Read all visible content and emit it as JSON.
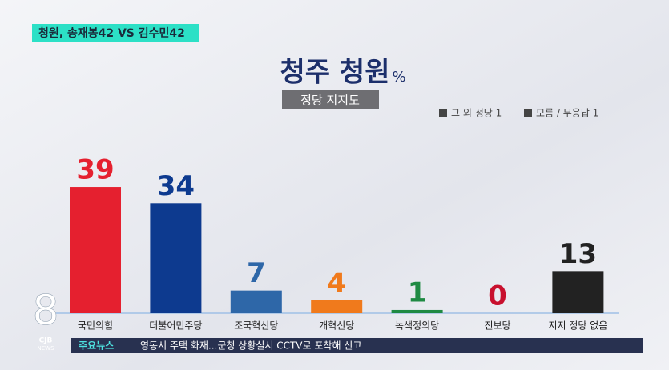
{
  "header": {
    "tag": "청원, 송재봉42 VS 김수민42"
  },
  "logo": {
    "mark": "8",
    "brand": "CJB",
    "sub": "NEWS"
  },
  "ticker": {
    "label": "주요뉴스",
    "text": "영동서 주택 화재...군청 상황실서 CCTV로 포착해 신고"
  },
  "chart_data": {
    "type": "bar",
    "title": "청주 청원",
    "title_unit": "%",
    "subtitle": "정당 지지도",
    "notes": [
      "그 외 정당 1",
      "모름 / 무응답 1"
    ],
    "categories": [
      "국민의힘",
      "더불어민주당",
      "조국혁신당",
      "개혁신당",
      "녹색정의당",
      "진보당",
      "지지 정당 없음"
    ],
    "values": [
      39,
      34,
      7,
      4,
      1,
      0,
      13
    ],
    "colors": [
      "#e5202f",
      "#0d3a8f",
      "#2e67a8",
      "#f07a1c",
      "#1f8a43",
      "#c8102e",
      "#222222"
    ]
  }
}
